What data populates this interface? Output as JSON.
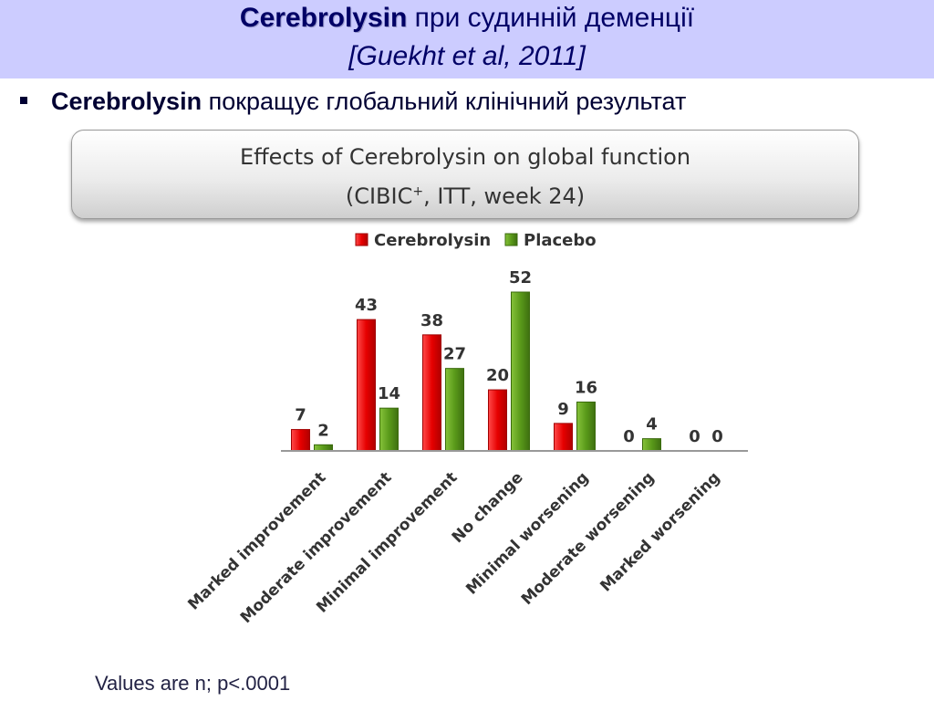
{
  "slide": {
    "title_brand": "Cerebrolysin",
    "title_rest": "при судинній деменції",
    "citation": "[Guekht et al, 2011]",
    "bullet_brand": "Cerebrolysin",
    "bullet_rest": "покращує глобальний клінічний результат",
    "footnote": "Values are n; p<.0001"
  },
  "colors": {
    "header_band": "#ccccff",
    "cerebrolysin": "#e60000",
    "placebo": "#5a9a1a"
  },
  "chart_data": {
    "type": "bar",
    "title": "Effects of Cerebrolysin on global function",
    "subtitle_main": "(CIBIC",
    "subtitle_sup": "+",
    "subtitle_rest": ", ITT, week 24)",
    "categories": [
      "Marked improvement",
      "Moderate improvement",
      "Minimal improvement",
      "No change",
      "Minimal worsening",
      "Moderate worsening",
      "Marked worsening"
    ],
    "series": [
      {
        "name": "Cerebrolysin",
        "values": [
          7,
          43,
          38,
          20,
          9,
          0,
          0
        ]
      },
      {
        "name": "Placebo",
        "values": [
          2,
          14,
          27,
          52,
          16,
          4,
          0
        ]
      }
    ],
    "ylim": [
      0,
      52
    ],
    "legend_position": "top-center",
    "grid": false
  }
}
